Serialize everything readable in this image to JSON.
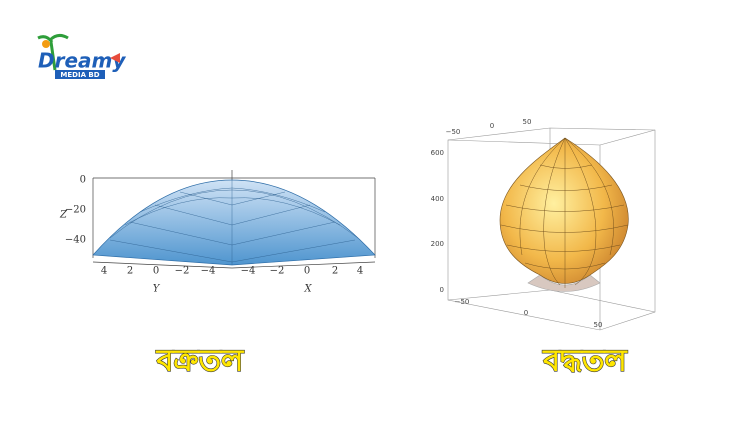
{
  "logo": {
    "name": "Dreamy",
    "sub": "MEDIA BD"
  },
  "left": {
    "z_label": "Z",
    "z_ticks": [
      "0",
      "−20",
      "−40"
    ],
    "y_ticks": [
      "4",
      "2",
      "0",
      "−2",
      "−4"
    ],
    "x_ticks": [
      "−4",
      "−2",
      "0",
      "2",
      "4"
    ],
    "y_label": "Y",
    "x_label": "X",
    "caption": "বক্রতল"
  },
  "right": {
    "top_ticks": [
      "−50",
      "0",
      "50"
    ],
    "z_ticks": [
      "600",
      "400",
      "200",
      "0"
    ],
    "bottom_ticks": [
      "−50",
      "0",
      "50"
    ],
    "caption": "বদ্ধতল"
  }
}
